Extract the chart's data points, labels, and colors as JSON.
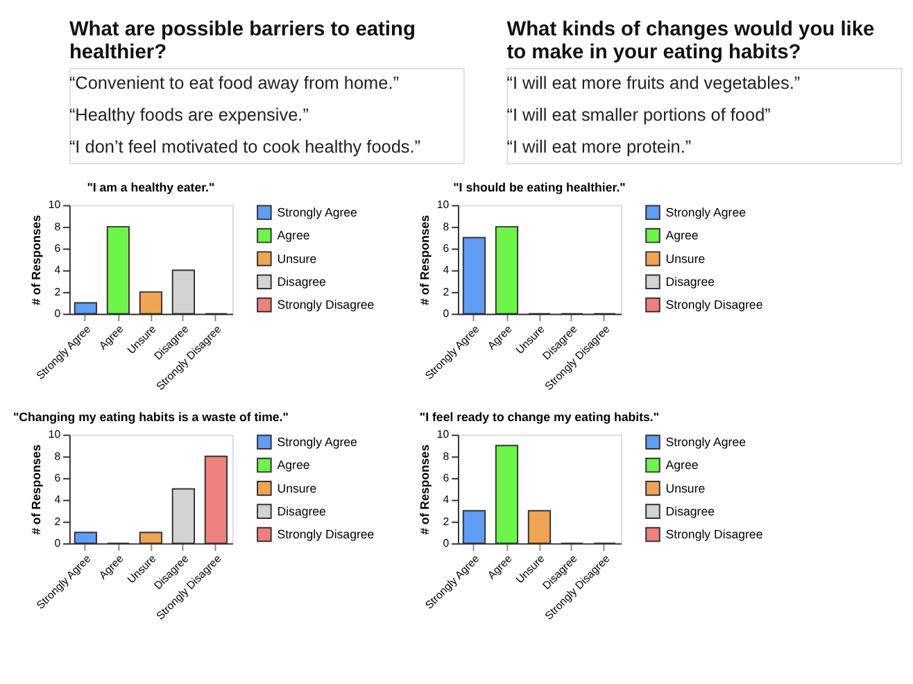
{
  "chart_data": [
    {
      "type": "other",
      "title": "What are possible barriers to eating healthier?",
      "annotations": [
        "“Convenient to eat food away from home.”",
        "“Healthy foods are expensive.”",
        "“I don’t feel motivated to cook healthy foods.”"
      ]
    },
    {
      "type": "other",
      "title": "What kinds of changes would you like to make in your eating habits?",
      "annotations": [
        "“I will eat more fruits and vegetables.”",
        "“I will eat smaller portions of food”",
        "“I will eat more protein.”"
      ]
    },
    {
      "type": "bar",
      "title": "\"I am a healthy eater.\"",
      "ylabel": "# of Responses",
      "categories": [
        "Strongly Agree",
        "Agree",
        "Unsure",
        "Disagree",
        "Strongly Disagree"
      ],
      "ylim": [
        0,
        10
      ],
      "yticks": [
        0,
        2,
        4,
        6,
        8,
        10
      ],
      "legend": "right",
      "grid": false,
      "series": [
        {
          "name": "Strongly Agree",
          "color": "#619cf5",
          "values": [
            1,
            null,
            null,
            null,
            null
          ]
        },
        {
          "name": "Agree",
          "color": "#6ef54a",
          "values": [
            null,
            8,
            null,
            null,
            null
          ]
        },
        {
          "name": "Unsure",
          "color": "#f0a554",
          "values": [
            null,
            null,
            2,
            null,
            null
          ]
        },
        {
          "name": "Disagree",
          "color": "#d3d3d3",
          "values": [
            null,
            null,
            null,
            4,
            null
          ]
        },
        {
          "name": "Strongly Disagree",
          "color": "#ef8080",
          "values": [
            null,
            null,
            null,
            null,
            0
          ]
        }
      ]
    },
    {
      "type": "bar",
      "title": "\"I should be eating healthier.\"",
      "ylabel": "# of Responses",
      "categories": [
        "Strongly Agree",
        "Agree",
        "Unsure",
        "Disagree",
        "Strongly Disagree"
      ],
      "ylim": [
        0,
        10
      ],
      "yticks": [
        0,
        2,
        4,
        6,
        8,
        10
      ],
      "legend": "right",
      "grid": false,
      "series": [
        {
          "name": "Strongly Agree",
          "color": "#619cf5",
          "values": [
            7,
            null,
            null,
            null,
            null
          ]
        },
        {
          "name": "Agree",
          "color": "#6ef54a",
          "values": [
            null,
            8,
            null,
            null,
            null
          ]
        },
        {
          "name": "Unsure",
          "color": "#f0a554",
          "values": [
            null,
            null,
            0,
            null,
            null
          ]
        },
        {
          "name": "Disagree",
          "color": "#d3d3d3",
          "values": [
            null,
            null,
            null,
            0,
            null
          ]
        },
        {
          "name": "Strongly Disagree",
          "color": "#ef8080",
          "values": [
            null,
            null,
            null,
            null,
            0
          ]
        }
      ]
    },
    {
      "type": "bar",
      "title": "\"Changing my eating habits is a waste of time.\"",
      "ylabel": "# of Responses",
      "categories": [
        "Strongly Agree",
        "Agree",
        "Unsure",
        "Disagree",
        "Strongly Disagree"
      ],
      "ylim": [
        0,
        10
      ],
      "yticks": [
        0,
        2,
        4,
        6,
        8,
        10
      ],
      "legend": "right",
      "grid": false,
      "series": [
        {
          "name": "Strongly Agree",
          "color": "#619cf5",
          "values": [
            1,
            null,
            null,
            null,
            null
          ]
        },
        {
          "name": "Agree",
          "color": "#6ef54a",
          "values": [
            null,
            0,
            null,
            null,
            null
          ]
        },
        {
          "name": "Unsure",
          "color": "#f0a554",
          "values": [
            null,
            null,
            1,
            null,
            null
          ]
        },
        {
          "name": "Disagree",
          "color": "#d3d3d3",
          "values": [
            null,
            null,
            null,
            5,
            null
          ]
        },
        {
          "name": "Strongly Disagree",
          "color": "#ef8080",
          "values": [
            null,
            null,
            null,
            null,
            8
          ]
        }
      ]
    },
    {
      "type": "bar",
      "title": "\"I feel ready to change my eating habits.\"",
      "ylabel": "# of Responses",
      "categories": [
        "Strongly Agree",
        "Agree",
        "Unsure",
        "Disagree",
        "Strongly Disagree"
      ],
      "ylim": [
        0,
        10
      ],
      "yticks": [
        0,
        2,
        4,
        6,
        8,
        10
      ],
      "legend": "right",
      "grid": false,
      "series": [
        {
          "name": "Strongly Agree",
          "color": "#619cf5",
          "values": [
            3,
            null,
            null,
            null,
            null
          ]
        },
        {
          "name": "Agree",
          "color": "#6ef54a",
          "values": [
            null,
            9,
            null,
            null,
            null
          ]
        },
        {
          "name": "Unsure",
          "color": "#f0a554",
          "values": [
            null,
            null,
            3,
            null,
            null
          ]
        },
        {
          "name": "Disagree",
          "color": "#d3d3d3",
          "values": [
            null,
            null,
            null,
            0,
            null
          ]
        },
        {
          "name": "Strongly Disagree",
          "color": "#ef8080",
          "values": [
            null,
            null,
            null,
            null,
            0
          ]
        }
      ]
    }
  ]
}
